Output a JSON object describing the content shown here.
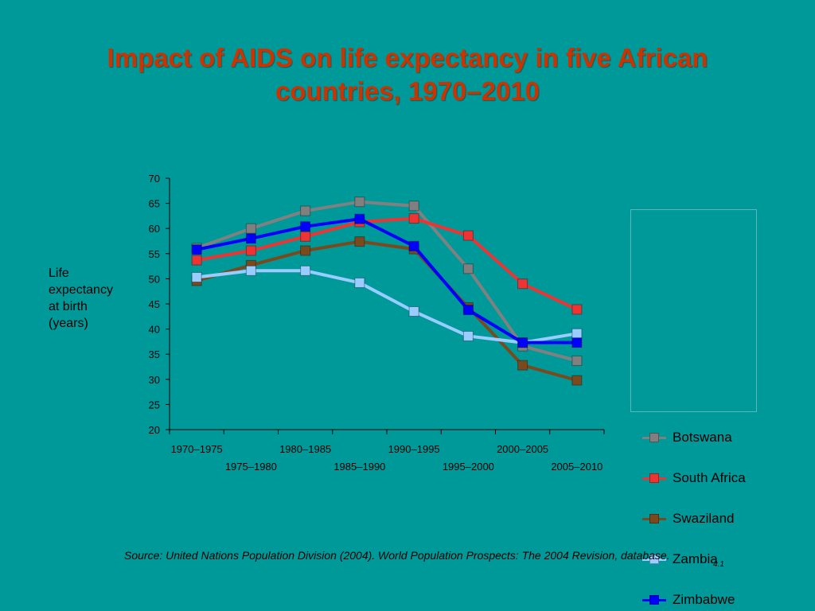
{
  "title_lines": [
    "Impact of AIDS on life expectancy in five African",
    "countries, 1970–2010"
  ],
  "ylabel_lines": [
    "Life",
    "expectancy",
    "at birth",
    "(years)"
  ],
  "source_text": "Source:  United Nations Population Division (2004).  World Population Prospects: The 2004 Revision, database.",
  "slide_number": "4.1",
  "colors": {
    "background": "#009999",
    "title": "#cc3300",
    "axis": "#000000"
  },
  "chart_data": {
    "type": "line",
    "title": "Impact of AIDS on life expectancy in five African countries, 1970–2010",
    "ylabel": "Life expectancy at birth (years)",
    "xlabel": "",
    "categories": [
      "1970–1975",
      "1975–1980",
      "1980–1985",
      "1985–1990",
      "1990–1995",
      "1995–2000",
      "2000–2005",
      "2005–2010"
    ],
    "ylim": [
      20,
      70
    ],
    "yticks": [
      20,
      25,
      30,
      35,
      40,
      45,
      50,
      55,
      60,
      65,
      70
    ],
    "grid": false,
    "legend_position": "right",
    "series": [
      {
        "name": "Botswana",
        "color": "#808080",
        "values": [
          56.1,
          60.0,
          63.5,
          65.3,
          64.5,
          52.0,
          36.6,
          33.7
        ]
      },
      {
        "name": "South Africa",
        "color": "#ee3333",
        "values": [
          53.7,
          55.6,
          58.4,
          61.3,
          62.0,
          58.6,
          49.0,
          43.9
        ]
      },
      {
        "name": "Swaziland",
        "color": "#7a4a1e",
        "values": [
          49.6,
          52.7,
          55.6,
          57.4,
          55.9,
          44.3,
          32.8,
          29.8
        ]
      },
      {
        "name": "Zambia",
        "color": "#99ccff",
        "values": [
          50.3,
          51.6,
          51.6,
          49.2,
          43.5,
          38.6,
          37.3,
          39.1
        ]
      },
      {
        "name": "Zimbabwe",
        "color": "#0000ff",
        "values": [
          55.8,
          58.0,
          60.4,
          61.9,
          56.5,
          43.8,
          37.3,
          37.3
        ]
      }
    ]
  }
}
